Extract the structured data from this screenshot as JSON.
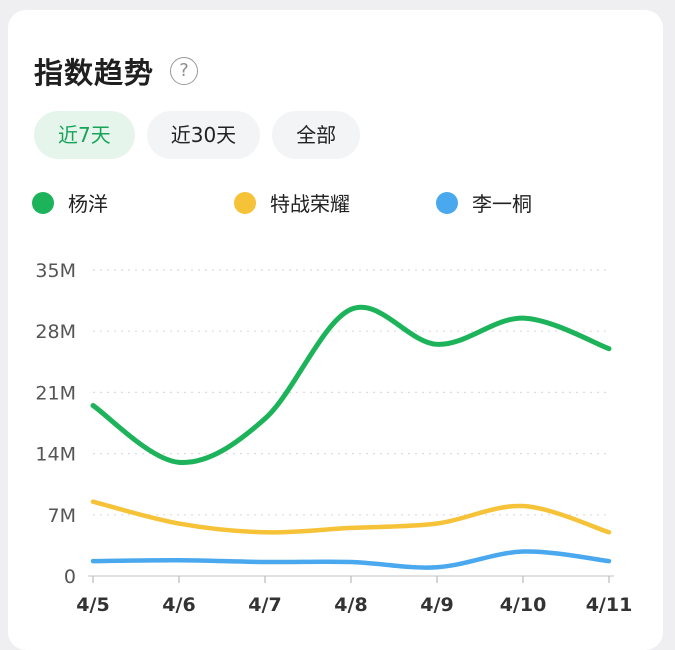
{
  "card": {
    "title": "指数趋势",
    "help_icon": "?",
    "tabs": [
      {
        "label": "近7天",
        "active": true
      },
      {
        "label": "近30天",
        "active": false
      },
      {
        "label": "全部",
        "active": false
      }
    ]
  },
  "chart_data": {
    "type": "line",
    "x": [
      "4/5",
      "4/6",
      "4/7",
      "4/8",
      "4/9",
      "4/10",
      "4/11"
    ],
    "yticks": [
      "35M",
      "28M",
      "21M",
      "14M",
      "7M",
      "0"
    ],
    "ylim": [
      0,
      35
    ],
    "ylabel": "",
    "xlabel": "",
    "grid": true,
    "legend_position": "top",
    "series": [
      {
        "name": "杨洋",
        "color": "#1db35a",
        "values": [
          19.5,
          13,
          18,
          30.5,
          26.5,
          29.5,
          26
        ]
      },
      {
        "name": "特战荣耀",
        "color": "#f5c238",
        "values": [
          8.5,
          6,
          5,
          5.5,
          6,
          8,
          5
        ]
      },
      {
        "name": "李一桐",
        "color": "#4aa8ee",
        "values": [
          1.7,
          1.8,
          1.6,
          1.6,
          1.0,
          2.8,
          1.7
        ]
      }
    ]
  }
}
